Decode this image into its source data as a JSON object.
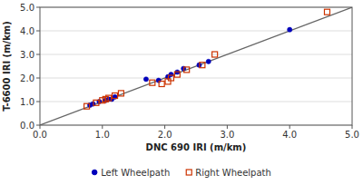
{
  "chart_data": {
    "type": "scatter",
    "xlabel": "DNC 690 IRI (m/km)",
    "ylabel": "T-6600 IRI (m/km)",
    "series": [
      {
        "type": "line",
        "color": "#666666",
        "x": [
          0.0,
          5.0
        ],
        "values": [
          0.0,
          5.0
        ]
      },
      {
        "name": "Left Wheelpath",
        "color": "#0000BB",
        "marker": "circle",
        "x": [
          0.8,
          0.85,
          0.95,
          1.05,
          1.1,
          1.15,
          1.2,
          1.7,
          1.9,
          2.05,
          2.1,
          2.2,
          2.3,
          2.55,
          2.7,
          4.0
        ],
        "values": [
          0.85,
          0.9,
          1.0,
          1.05,
          1.1,
          1.1,
          1.2,
          1.95,
          1.9,
          2.05,
          2.15,
          2.25,
          2.4,
          2.55,
          2.7,
          4.05
        ]
      },
      {
        "name": "Right Wheelpath",
        "color": "#CC3300",
        "marker": "square-open",
        "x": [
          0.75,
          0.9,
          1.0,
          1.05,
          1.1,
          1.2,
          1.3,
          1.8,
          1.95,
          2.05,
          2.1,
          2.2,
          2.35,
          2.6,
          2.8,
          4.6
        ],
        "values": [
          0.8,
          0.95,
          1.05,
          1.1,
          1.15,
          1.25,
          1.35,
          1.8,
          1.75,
          1.85,
          2.0,
          2.15,
          2.35,
          2.55,
          3.0,
          4.8
        ]
      }
    ],
    "xlim": [
      0.0,
      5.0
    ],
    "ylim": [
      0.0,
      5.0
    ],
    "xticks": [
      {
        "value": 0.0,
        "label": "0.0"
      },
      {
        "value": 1.0,
        "label": "1.0"
      },
      {
        "value": 2.0,
        "label": "2.0"
      },
      {
        "value": 3.0,
        "label": "3.0"
      },
      {
        "value": 4.0,
        "label": "4.0"
      },
      {
        "value": 5.0,
        "label": "5.0"
      }
    ],
    "yticks": [
      {
        "value": 0.0,
        "label": "0.0"
      },
      {
        "value": 1.0,
        "label": "1.0"
      },
      {
        "value": 2.0,
        "label": "2.0"
      },
      {
        "value": 3.0,
        "label": "3.0"
      },
      {
        "value": 4.0,
        "label": "4.0"
      },
      {
        "value": 5.0,
        "label": "5.0"
      }
    ],
    "grid": "y",
    "legend": "bottom"
  }
}
